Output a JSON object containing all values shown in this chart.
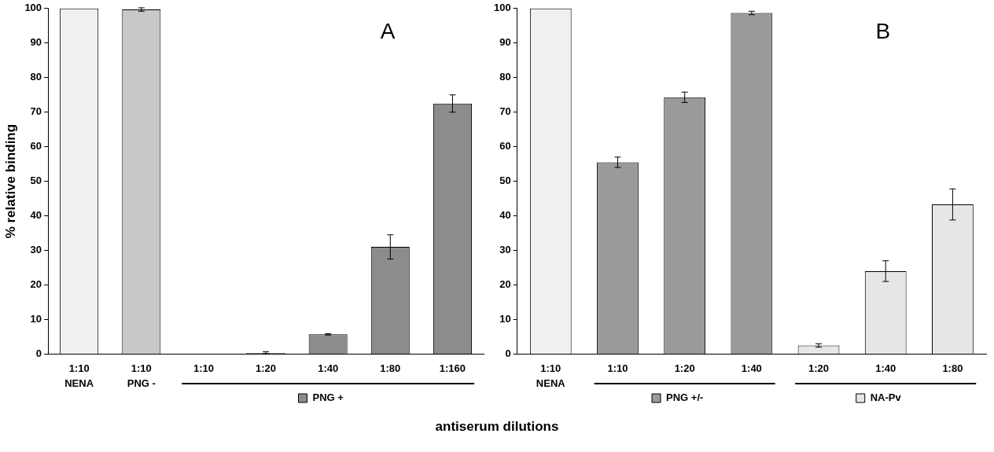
{
  "chart_data": [
    {
      "type": "bar",
      "title": "A",
      "xlabel": "antiserum dilutions",
      "ylabel": "% relative binding",
      "categories": [
        "1:10",
        "1:10",
        "1:10",
        "1:20",
        "1:40",
        "1:80",
        "1:160"
      ],
      "ylim": [
        0,
        100
      ],
      "yticks": [
        0,
        10,
        20,
        30,
        40,
        50,
        60,
        70,
        80,
        90,
        100
      ],
      "grid": false,
      "legend": "bottom",
      "series": [
        {
          "name": "NENA",
          "color": "#f0f0f0",
          "values": [
            100,
            null,
            null,
            null,
            null,
            null,
            null
          ],
          "errors": [
            null,
            null,
            null,
            null,
            null,
            null,
            null
          ]
        },
        {
          "name": "PNG -",
          "color": "#c8c8c8",
          "values": [
            null,
            99.7,
            null,
            null,
            null,
            null,
            null
          ],
          "errors": [
            null,
            0.5,
            null,
            null,
            null,
            null,
            null
          ]
        },
        {
          "name": "PNG +",
          "color": "#8c8c8c",
          "values": [
            null,
            null,
            0,
            0.3,
            5.7,
            31,
            72.5
          ],
          "errors": [
            null,
            null,
            null,
            [
              0.2,
              0.4
            ],
            0.2,
            3.5,
            2.5
          ]
        }
      ]
    },
    {
      "type": "bar",
      "title": "B",
      "categories": [
        "1:10",
        "1:10",
        "1:20",
        "1:40",
        "1:20",
        "1:40",
        "1:80"
      ],
      "ylim": [
        0,
        100
      ],
      "yticks": [
        0,
        10,
        20,
        30,
        40,
        50,
        60,
        70,
        80,
        90,
        100
      ],
      "grid": false,
      "legend": "bottom",
      "series": [
        {
          "name": "NENA",
          "color": "#f0f0f0",
          "values": [
            100,
            null,
            null,
            null,
            null,
            null,
            null
          ],
          "errors": [
            null,
            null,
            null,
            null,
            null,
            null,
            null
          ]
        },
        {
          "name": "PNG +/-",
          "color": "#9a9a9a",
          "values": [
            null,
            55.5,
            74.3,
            98.7,
            null,
            null,
            null
          ],
          "errors": [
            null,
            1.5,
            1.5,
            0.5,
            null,
            null,
            null
          ]
        },
        {
          "name": "NA-Pv",
          "color": "#e6e6e6",
          "values": [
            null,
            null,
            null,
            null,
            2.5,
            24,
            43.3
          ],
          "errors": [
            null,
            null,
            null,
            null,
            0.5,
            3,
            4.5
          ]
        }
      ]
    }
  ]
}
